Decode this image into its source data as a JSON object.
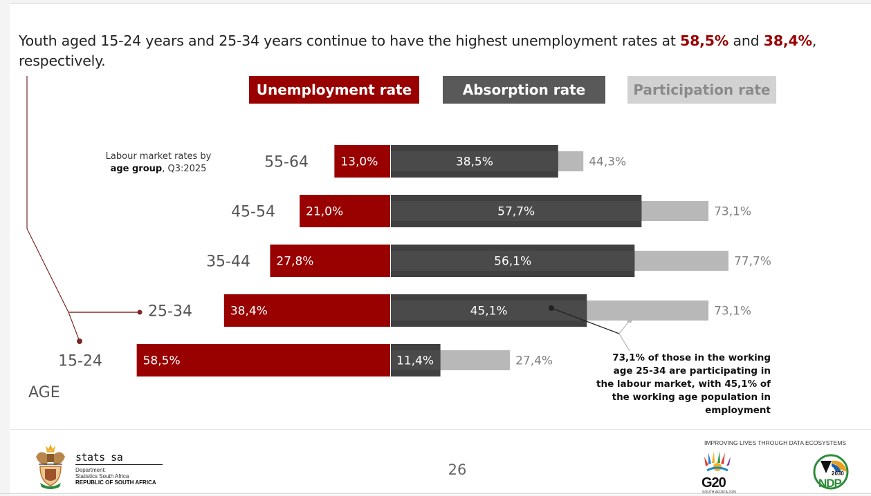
{
  "headline": {
    "before": "Youth aged 15-24 years and 25-34 years continue to have the highest unemployment rates at ",
    "value1": "58,5%",
    "middle": " and ",
    "value2": "38,4%",
    "after": ", respectively."
  },
  "legend": {
    "unemployment": "Unemployment rate",
    "absorption": "Absorption rate",
    "participation": "Participation rate"
  },
  "subtitle": {
    "line1": "Labour market rates by",
    "bold": "age group",
    "rest": ", Q3:2025"
  },
  "age_title": "AGE",
  "annotation": "73,1% of those in the working age  25-34 are participating in the labour market, with 45,1% of  the working age population in employment",
  "colors": {
    "unemployment": "#990000",
    "absorption": "#404040",
    "participation": "#b8b8b8",
    "connector": "#7a2a25"
  },
  "chart_data": {
    "type": "bar",
    "orientation": "horizontal-diverging",
    "title": "Labour market rates by age group, Q3:2025",
    "categories": [
      "55-64",
      "45-54",
      "35-44",
      "25-34",
      "15-24"
    ],
    "category_axis_label": "AGE",
    "series": [
      {
        "name": "Unemployment rate",
        "values": [
          13.0,
          21.0,
          27.8,
          38.4,
          58.5
        ],
        "labels": [
          "13,0%",
          "21,0%",
          "27,8%",
          "38,4%",
          "58,5%"
        ],
        "direction": "left"
      },
      {
        "name": "Absorption rate",
        "values": [
          38.5,
          57.7,
          56.1,
          45.1,
          11.4
        ],
        "labels": [
          "38,5%",
          "57,7%",
          "56,1%",
          "45,1%",
          "11,4%"
        ],
        "direction": "right"
      },
      {
        "name": "Participation rate",
        "values": [
          44.3,
          73.1,
          77.7,
          73.1,
          27.4
        ],
        "labels": [
          "44,3%",
          "73,1%",
          "77,7%",
          "73,1%",
          "27,4%"
        ],
        "direction": "right"
      }
    ],
    "legend_position": "top",
    "grid": false
  },
  "footer": {
    "org_name": "stats sa",
    "dept_line1": "Department:",
    "dept_line2": "Statistics South Africa",
    "country": "REPUBLIC OF SOUTH AFRICA",
    "page_number": "26",
    "tagline": "IMPROVING LIVES THROUGH DATA ECOSYSTEMS",
    "g20_logo": "G20",
    "g20_sub": "SOUTH AFRICA 2025",
    "ndp_logo": "NDP",
    "ndp_year": "2030"
  }
}
